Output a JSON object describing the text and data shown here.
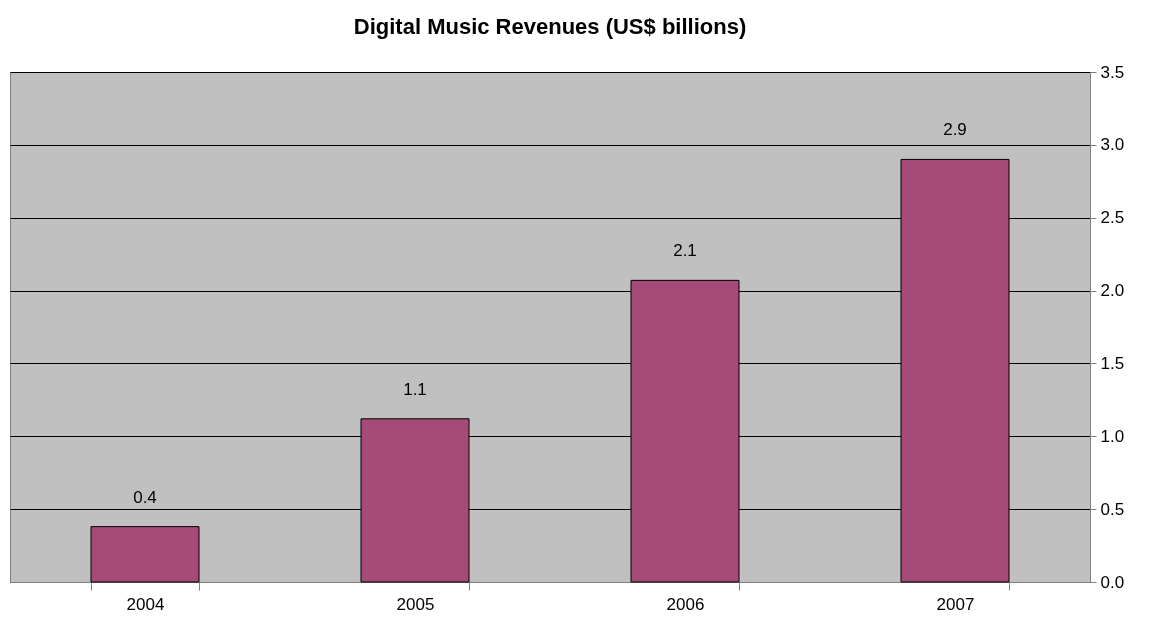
{
  "chart_data": {
    "type": "bar",
    "title": "Digital Music Revenues (US$ billions)",
    "categories": [
      "2004",
      "2005",
      "2006",
      "2007"
    ],
    "values": [
      0.38,
      1.12,
      2.07,
      2.9
    ],
    "value_labels": [
      "0.4",
      "1.1",
      "2.1",
      "2.9"
    ],
    "color": "#a64a78",
    "ylim": [
      0,
      3.5
    ],
    "yticks": [
      {
        "value": 0,
        "label": "0.0"
      },
      0.5,
      {
        "value": 1,
        "label": "1.0"
      },
      1.5,
      {
        "value": 2,
        "label": "2.0"
      },
      2.5,
      {
        "value": 3,
        "label": "3.0"
      },
      3.5
    ],
    "grid": "y"
  }
}
